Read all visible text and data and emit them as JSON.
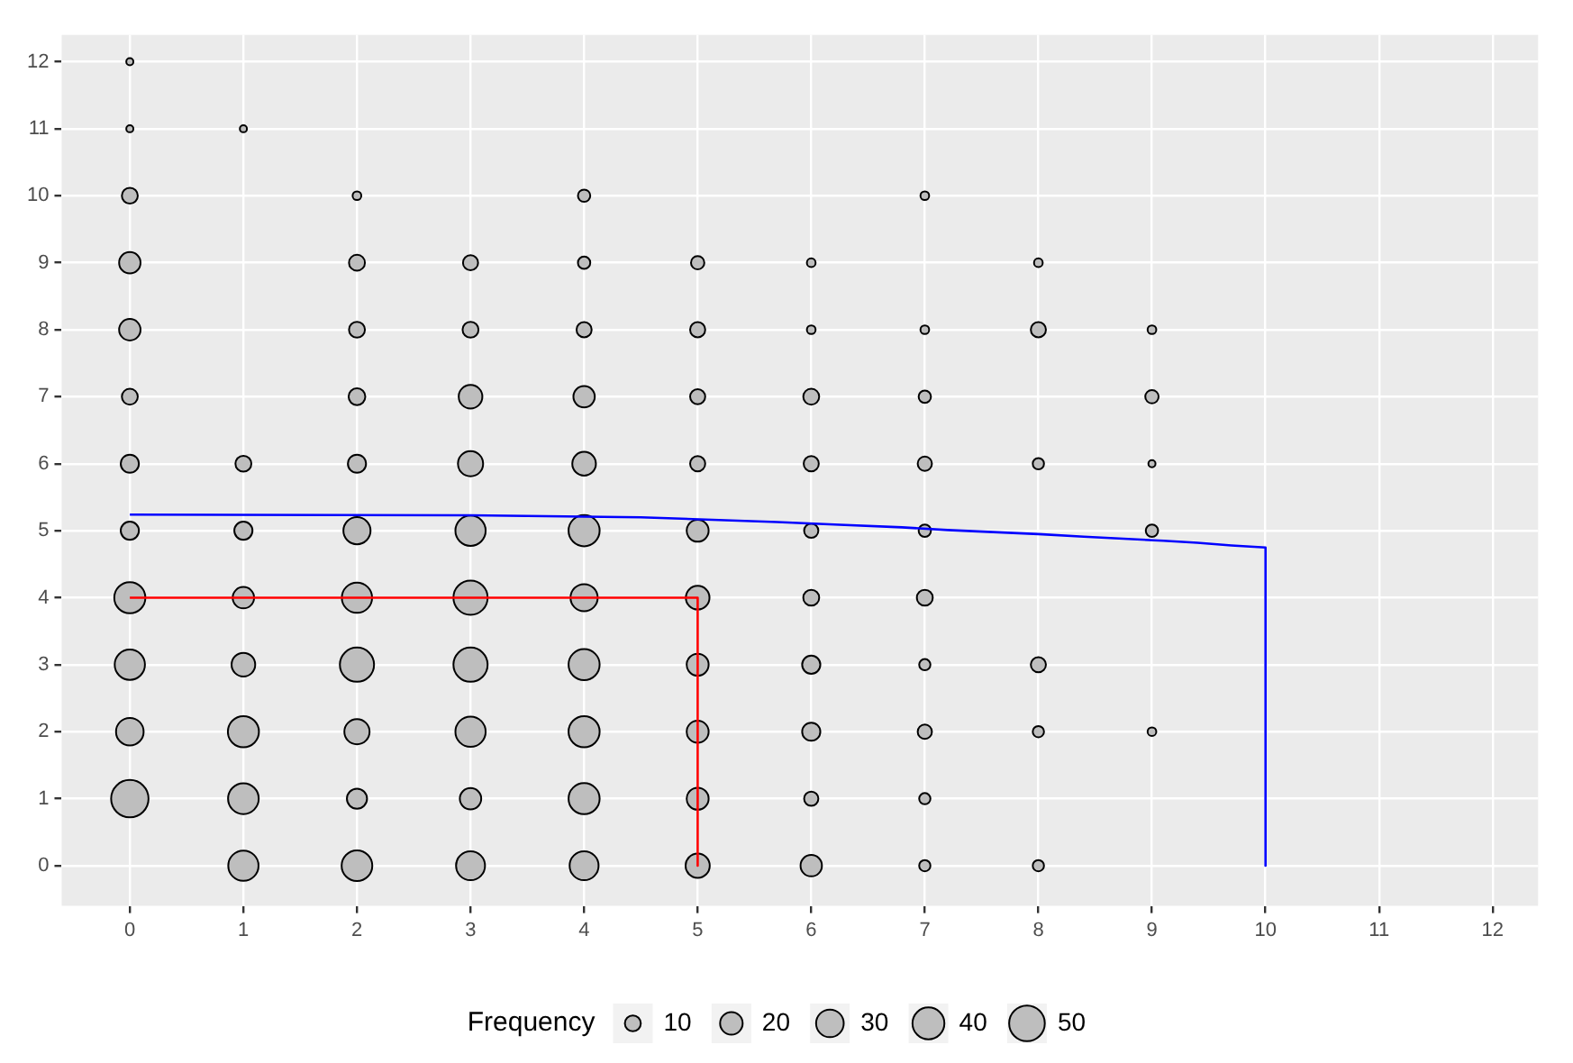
{
  "chart_data": {
    "type": "bubble",
    "legend_title": "Frequency",
    "grid": true,
    "xlim": [
      -0.6,
      12.4
    ],
    "ylim": [
      -0.6,
      12.4
    ],
    "xticks": [
      0,
      1,
      2,
      3,
      4,
      5,
      6,
      7,
      8,
      9,
      10,
      11,
      12
    ],
    "yticks": [
      0,
      1,
      2,
      3,
      4,
      5,
      6,
      7,
      8,
      9,
      10,
      11,
      12
    ],
    "size_legend": [
      10,
      20,
      30,
      40,
      50
    ],
    "series": [
      {
        "color": "#bebebe",
        "x": [
          0,
          0,
          0,
          0,
          0,
          0,
          0,
          0,
          0,
          0,
          0,
          0,
          1,
          1,
          1,
          1,
          1,
          1,
          1,
          1,
          2,
          2,
          2,
          2,
          2,
          2,
          2,
          2,
          2,
          2,
          2,
          3,
          3,
          3,
          3,
          3,
          3,
          3,
          3,
          3,
          3,
          4,
          4,
          4,
          4,
          4,
          4,
          4,
          4,
          4,
          4,
          4,
          5,
          5,
          5,
          5,
          5,
          5,
          5,
          5,
          5,
          5,
          6,
          6,
          6,
          6,
          6,
          6,
          6,
          6,
          6,
          6,
          7,
          7,
          7,
          7,
          7,
          7,
          7,
          7,
          7,
          7,
          8,
          8,
          8,
          8,
          8,
          8,
          9,
          9,
          9,
          9,
          9
        ],
        "values": [
          1,
          2,
          3,
          4,
          5,
          6,
          7,
          8,
          9,
          10,
          11,
          12,
          0,
          1,
          2,
          3,
          4,
          5,
          6,
          11,
          0,
          1,
          2,
          3,
          4,
          5,
          6,
          7,
          8,
          9,
          10,
          0,
          1,
          2,
          3,
          4,
          5,
          6,
          7,
          8,
          9,
          0,
          1,
          2,
          3,
          4,
          5,
          6,
          7,
          8,
          9,
          10,
          0,
          1,
          2,
          3,
          4,
          5,
          6,
          7,
          8,
          9,
          0,
          1,
          2,
          3,
          4,
          5,
          6,
          7,
          8,
          9,
          0,
          1,
          2,
          3,
          4,
          5,
          6,
          7,
          8,
          10,
          0,
          2,
          3,
          6,
          8,
          9,
          2,
          5,
          6,
          7,
          8
        ],
        "sizes": [
          55,
          30,
          36,
          38,
          13,
          13,
          10,
          18,
          18,
          10,
          2,
          2,
          36,
          37,
          38,
          22,
          18,
          13,
          10,
          2,
          37,
          16,
          25,
          46,
          36,
          29,
          13,
          11,
          10,
          10,
          3,
          33,
          18,
          36,
          46,
          46,
          36,
          25,
          22,
          10,
          9,
          33,
          38,
          38,
          38,
          29,
          38,
          22,
          18,
          9,
          6,
          6,
          23,
          19,
          19,
          19,
          22,
          19,
          9,
          9,
          9,
          7,
          18,
          8,
          13,
          13,
          10,
          8,
          9,
          10,
          3,
          3,
          5,
          5,
          8,
          5,
          10,
          6,
          8,
          6,
          3,
          3,
          5,
          5,
          9,
          5,
          9,
          3,
          3,
          6,
          2,
          7,
          3
        ]
      },
      {
        "type": "line",
        "color": "#ff0000",
        "x": [
          0,
          5,
          5
        ],
        "values": [
          4,
          4,
          0
        ]
      },
      {
        "type": "line",
        "color": "#0000ff",
        "x": [
          0,
          3,
          4.5,
          5.7,
          6.25,
          6.8,
          7.2,
          7.6,
          8,
          8.4,
          8.75,
          9.1,
          9.4,
          9.7,
          10,
          10
        ],
        "values": [
          5.24,
          5.23,
          5.2,
          5.13,
          5.09,
          5.05,
          5.01,
          4.98,
          4.95,
          4.91,
          4.88,
          4.85,
          4.82,
          4.78,
          4.75,
          0
        ]
      }
    ]
  }
}
